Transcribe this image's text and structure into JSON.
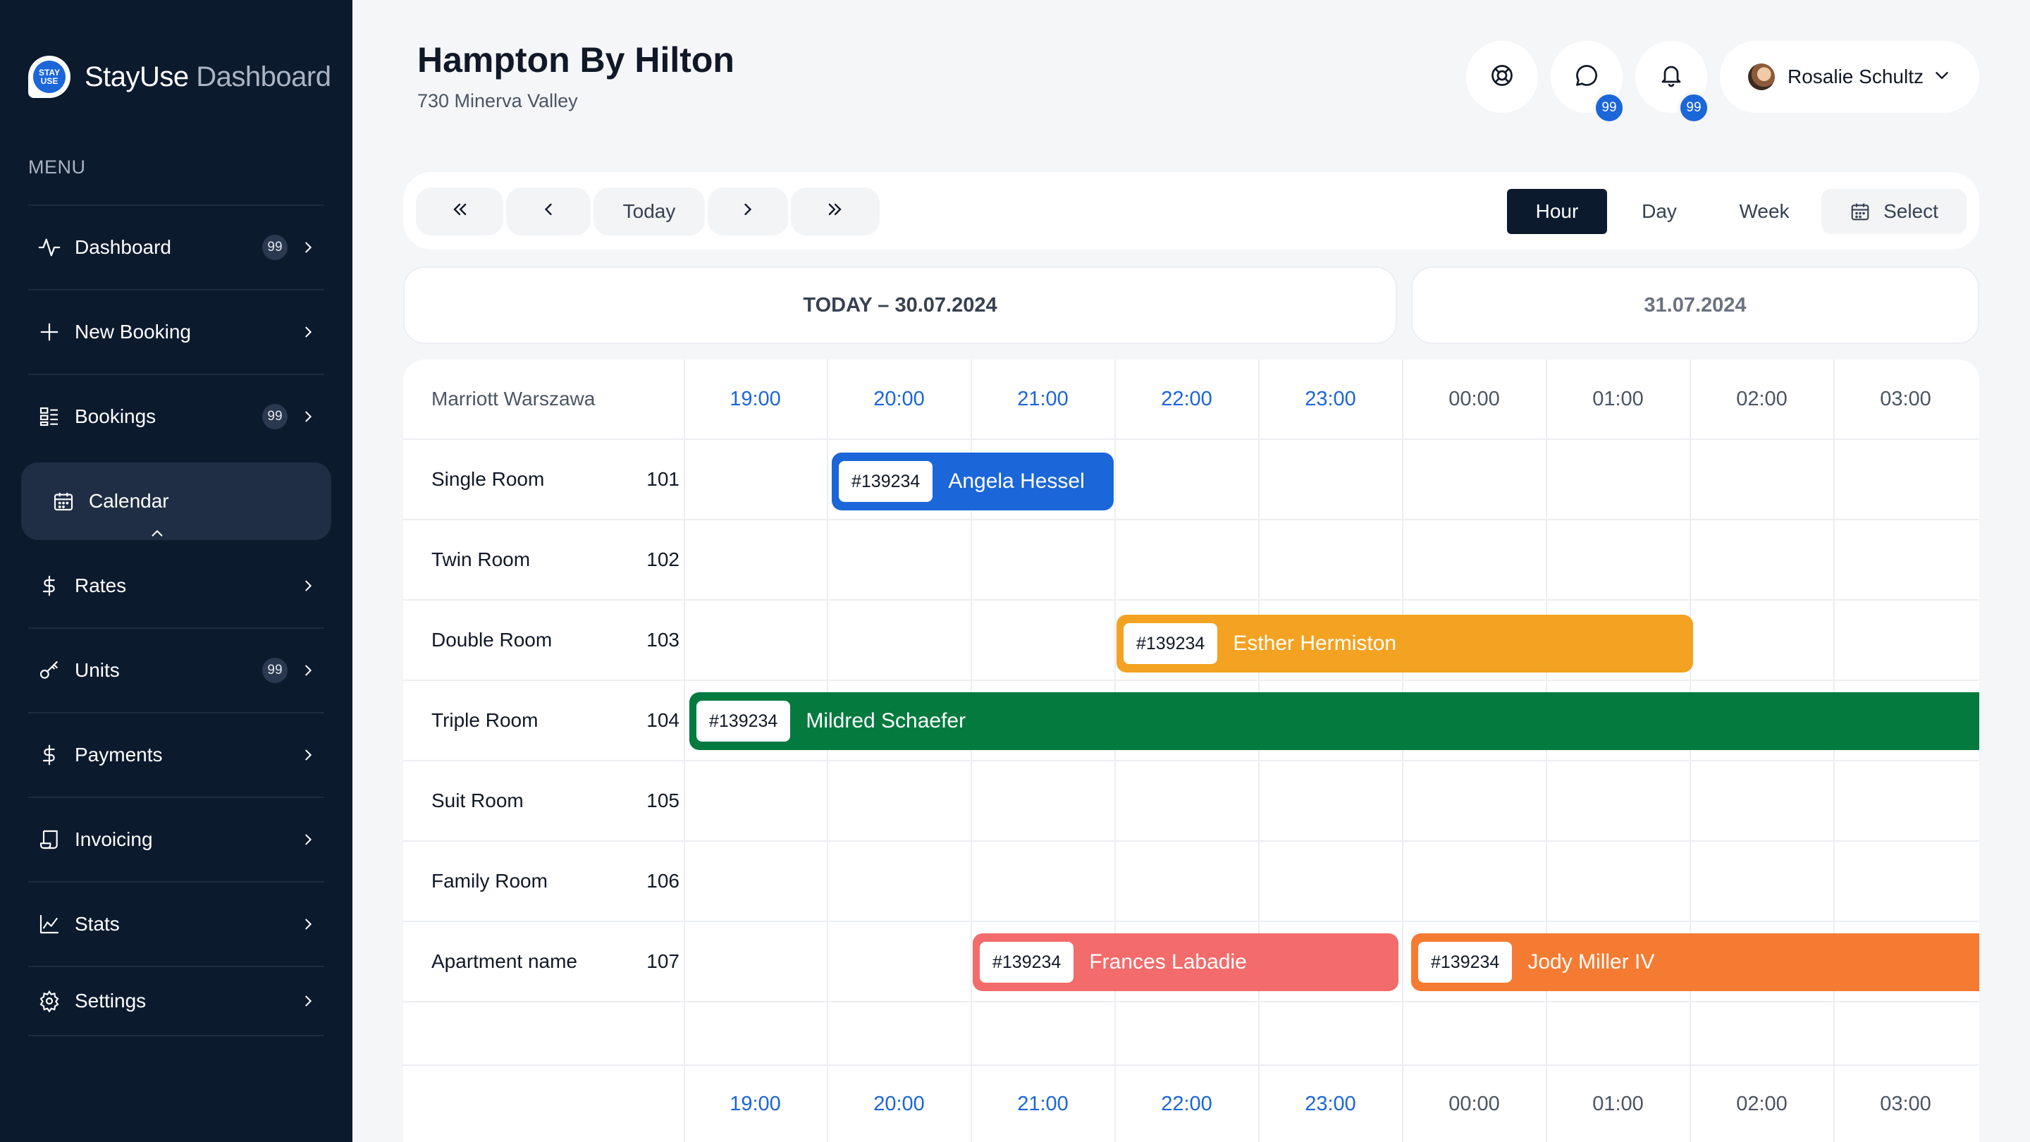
{
  "brand": {
    "logo_text_top": "STAY",
    "logo_text_bottom": "USE",
    "name_primary": "StayUse",
    "name_secondary": "Dashboard"
  },
  "sidebar": {
    "menu_title": "MENU",
    "items": [
      {
        "label": "Dashboard",
        "badge": "99",
        "icon": "activity-icon"
      },
      {
        "label": "New Booking",
        "badge": null,
        "icon": "plus-icon"
      },
      {
        "label": "Bookings",
        "badge": "99",
        "icon": "list-icon"
      },
      {
        "label": "Calendar",
        "badge": null,
        "icon": "calendar-icon",
        "active": true
      },
      {
        "label": "Rates",
        "badge": null,
        "icon": "dollar-icon"
      },
      {
        "label": "Units",
        "badge": "99",
        "icon": "key-icon"
      },
      {
        "label": "Payments",
        "badge": null,
        "icon": "dollar-icon"
      },
      {
        "label": "Invoicing",
        "badge": null,
        "icon": "receipt-icon"
      },
      {
        "label": "Stats",
        "badge": null,
        "icon": "chart-icon"
      },
      {
        "label": "Settings",
        "badge": null,
        "icon": "gear-icon"
      }
    ]
  },
  "header": {
    "title": "Hampton By Hilton",
    "address": "730 Minerva Valley",
    "messages_badge": "99",
    "notifications_badge": "99",
    "user_name": "Rosalie Schultz"
  },
  "toolbar": {
    "today_label": "Today",
    "views": [
      "Hour",
      "Day",
      "Week"
    ],
    "active_view": "Hour",
    "select_label": "Select"
  },
  "dates": {
    "today": "TODAY – 30.07.2024",
    "next": "31.07.2024"
  },
  "calendar": {
    "hotel": "Marriott Warszawa",
    "times": [
      "19:00",
      "20:00",
      "21:00",
      "22:00",
      "23:00",
      "00:00",
      "01:00",
      "02:00",
      "03:00"
    ],
    "rooms": [
      {
        "name": "Single Room",
        "number": "101"
      },
      {
        "name": "Twin Room",
        "number": "102"
      },
      {
        "name": "Double Room",
        "number": "103"
      },
      {
        "name": "Triple Room",
        "number": "104"
      },
      {
        "name": "Suit Room",
        "number": "105"
      },
      {
        "name": "Family Room",
        "number": "106"
      },
      {
        "name": "Apartment name",
        "number": "107"
      }
    ],
    "bookings": [
      {
        "id": "#139234",
        "guest": "Angela Hessel",
        "room": "101",
        "color": "#1b66d8"
      },
      {
        "id": "#139234",
        "guest": "Esther Hermiston",
        "room": "103",
        "color": "#f3a221"
      },
      {
        "id": "#139234",
        "guest": "Mildred Schaefer",
        "room": "104",
        "color": "#047a3f"
      },
      {
        "id": "#139234",
        "guest": "Frances Labadie",
        "room": "107",
        "color": "#f36b6b"
      },
      {
        "id": "#139234",
        "guest": "Jody Miller IV",
        "room": "107",
        "color": "#f57b32"
      }
    ]
  },
  "colors": {
    "sidebar_bg": "#0c1a2e",
    "accent": "#1b66d8",
    "today_time": "#1b66d8"
  }
}
